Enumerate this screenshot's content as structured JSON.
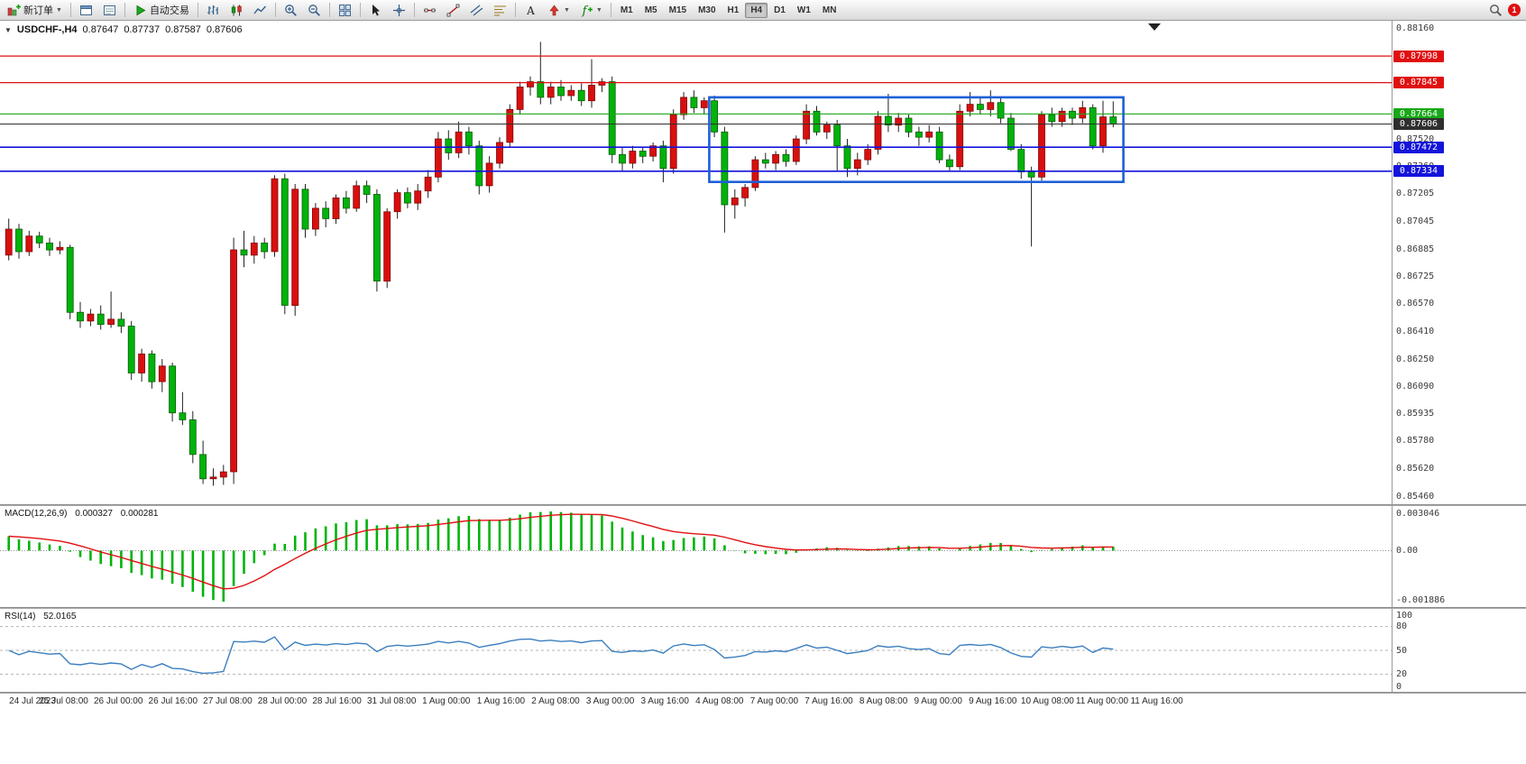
{
  "toolbar": {
    "new_order_label": "新订单",
    "autotrading_label": "自动交易",
    "timeframes": [
      "M1",
      "M5",
      "M15",
      "M30",
      "H1",
      "H4",
      "D1",
      "W1",
      "MN"
    ],
    "active_timeframe": "H4",
    "notification_count": "1"
  },
  "chart_header": {
    "symbol_period": "USDCHF-,H4",
    "open": "0.87647",
    "high": "0.87737",
    "low": "0.87587",
    "close": "0.87606"
  },
  "price_scale": {
    "plain_ticks": [
      "0.88160",
      "0.87520",
      "0.87360",
      "0.87205",
      "0.87045",
      "0.86885",
      "0.86725",
      "0.86570",
      "0.86410",
      "0.86250",
      "0.86090",
      "0.85935",
      "0.85780",
      "0.85620",
      "0.85460"
    ]
  },
  "macd": {
    "label": "MACD(12,26,9)",
    "main_value": "0.000327",
    "signal_value": "0.000281",
    "scale_max": "0.003046",
    "scale_zero": "0.00",
    "scale_min": "-0.001886",
    "histogram_color": "#00b30b",
    "signal_color": "#e01010"
  },
  "rsi": {
    "label": "RSI(14)",
    "value": "52.0165",
    "scale_ticks": [
      "100",
      "80",
      "50",
      "20",
      "0"
    ],
    "level_lines": [
      80,
      50,
      20
    ],
    "line_color": "#3c7fbf"
  },
  "chart_data": {
    "type": "candlestick",
    "symbol": "USDCHF-",
    "period": "H4",
    "y_range": {
      "max": 0.8816,
      "min": 0.8546
    },
    "bull_color": "#d90f0f",
    "bear_color": "#00b30b",
    "wick_color": "#222222",
    "levels": [
      {
        "price": 0.87998,
        "label": "0.87998",
        "color": "#e01010"
      },
      {
        "price": 0.87845,
        "label": "0.87845",
        "color": "#e01010"
      },
      {
        "price": 0.87664,
        "label": "0.87664",
        "color": "#18a818"
      },
      {
        "price": 0.87606,
        "label": "0.87606",
        "color": "#2f2f2f",
        "is_bid": true
      },
      {
        "price": 0.87472,
        "label": "0.87472",
        "color": "#1414dd"
      },
      {
        "price": 0.87334,
        "label": "0.87334",
        "color": "#1414dd"
      }
    ],
    "rectangle": {
      "start_index": 69,
      "end_index": 109.5,
      "top": 0.8776,
      "bottom": 0.87272,
      "color": "#1e5fd8"
    },
    "x_labels": [
      "24 Jul 2023",
      "25 Jul 08:00",
      "26 Jul 00:00",
      "26 Jul 16:00",
      "27 Jul 08:00",
      "28 Jul 00:00",
      "28 Jul 16:00",
      "31 Jul 08:00",
      "1 Aug 00:00",
      "1 Aug 16:00",
      "2 Aug 08:00",
      "3 Aug 00:00",
      "3 Aug 16:00",
      "4 Aug 08:00",
      "7 Aug 00:00",
      "7 Aug 16:00",
      "8 Aug 08:00",
      "9 Aug 00:00",
      "9 Aug 16:00",
      "10 Aug 08:00",
      "11 Aug 00:00",
      "11 Aug 16:00"
    ],
    "ohlc": [
      [
        0.8685,
        0.8706,
        0.8682,
        0.87
      ],
      [
        0.87,
        0.8703,
        0.8683,
        0.8687
      ],
      [
        0.8687,
        0.8699,
        0.86845,
        0.8696
      ],
      [
        0.8696,
        0.86985,
        0.8689,
        0.8692
      ],
      [
        0.8692,
        0.8695,
        0.86845,
        0.8688
      ],
      [
        0.8688,
        0.8693,
        0.86855,
        0.86895
      ],
      [
        0.86895,
        0.8691,
        0.8648,
        0.8652
      ],
      [
        0.8652,
        0.8658,
        0.8643,
        0.8647
      ],
      [
        0.8647,
        0.8654,
        0.8644,
        0.8651
      ],
      [
        0.8651,
        0.8656,
        0.8642,
        0.8645
      ],
      [
        0.8645,
        0.8664,
        0.8643,
        0.8648
      ],
      [
        0.8648,
        0.8652,
        0.864,
        0.8644
      ],
      [
        0.8644,
        0.8647,
        0.8613,
        0.8617
      ],
      [
        0.8617,
        0.8631,
        0.8612,
        0.8628
      ],
      [
        0.8628,
        0.863,
        0.8608,
        0.8612
      ],
      [
        0.8612,
        0.8625,
        0.8606,
        0.8621
      ],
      [
        0.8621,
        0.8623,
        0.8589,
        0.8594
      ],
      [
        0.8594,
        0.8606,
        0.8587,
        0.859
      ],
      [
        0.859,
        0.8595,
        0.8565,
        0.857
      ],
      [
        0.857,
        0.8578,
        0.8553,
        0.8556
      ],
      [
        0.8556,
        0.8562,
        0.8552,
        0.8557
      ],
      [
        0.8557,
        0.8564,
        0.85525,
        0.856
      ],
      [
        0.856,
        0.8695,
        0.8553,
        0.8688
      ],
      [
        0.8688,
        0.8699,
        0.8678,
        0.8685
      ],
      [
        0.8685,
        0.8696,
        0.868,
        0.8692
      ],
      [
        0.8692,
        0.8695,
        0.8683,
        0.8687
      ],
      [
        0.8687,
        0.8731,
        0.8684,
        0.8729
      ],
      [
        0.8729,
        0.8732,
        0.8651,
        0.8656
      ],
      [
        0.8656,
        0.8726,
        0.865,
        0.8723
      ],
      [
        0.8723,
        0.8726,
        0.8695,
        0.87
      ],
      [
        0.87,
        0.8715,
        0.8696,
        0.8712
      ],
      [
        0.8712,
        0.8716,
        0.8701,
        0.8706
      ],
      [
        0.8706,
        0.872,
        0.8703,
        0.8718
      ],
      [
        0.8718,
        0.8722,
        0.8709,
        0.8712
      ],
      [
        0.8712,
        0.8728,
        0.871,
        0.8725
      ],
      [
        0.8725,
        0.8728,
        0.8715,
        0.872
      ],
      [
        0.872,
        0.8723,
        0.8664,
        0.867
      ],
      [
        0.867,
        0.8712,
        0.8666,
        0.871
      ],
      [
        0.871,
        0.8723,
        0.8706,
        0.8721
      ],
      [
        0.8721,
        0.8724,
        0.8712,
        0.8715
      ],
      [
        0.8715,
        0.8726,
        0.8711,
        0.8722
      ],
      [
        0.8722,
        0.8734,
        0.8718,
        0.873
      ],
      [
        0.873,
        0.8756,
        0.8727,
        0.8752
      ],
      [
        0.8752,
        0.8757,
        0.874,
        0.8744
      ],
      [
        0.8744,
        0.8762,
        0.8741,
        0.8756
      ],
      [
        0.8756,
        0.8759,
        0.8743,
        0.8748
      ],
      [
        0.8748,
        0.8751,
        0.872,
        0.8725
      ],
      [
        0.8725,
        0.8742,
        0.8721,
        0.8738
      ],
      [
        0.8738,
        0.8753,
        0.8735,
        0.875
      ],
      [
        0.875,
        0.8772,
        0.8747,
        0.8769
      ],
      [
        0.8769,
        0.8785,
        0.8766,
        0.8782
      ],
      [
        0.8782,
        0.8788,
        0.8777,
        0.8785
      ],
      [
        0.8785,
        0.8808,
        0.8772,
        0.8776
      ],
      [
        0.8776,
        0.8785,
        0.8772,
        0.8782
      ],
      [
        0.8782,
        0.8786,
        0.8774,
        0.8777
      ],
      [
        0.8777,
        0.8783,
        0.8774,
        0.878
      ],
      [
        0.878,
        0.8784,
        0.8771,
        0.8774
      ],
      [
        0.8774,
        0.8798,
        0.877,
        0.8783
      ],
      [
        0.8783,
        0.8787,
        0.8779,
        0.8785
      ],
      [
        0.8785,
        0.8788,
        0.8738,
        0.8743
      ],
      [
        0.8743,
        0.8747,
        0.8733,
        0.8738
      ],
      [
        0.8738,
        0.8748,
        0.8735,
        0.8745
      ],
      [
        0.8745,
        0.8747,
        0.8738,
        0.8742
      ],
      [
        0.8742,
        0.875,
        0.8739,
        0.8748
      ],
      [
        0.8748,
        0.8751,
        0.8727,
        0.8735
      ],
      [
        0.8735,
        0.8769,
        0.8732,
        0.8766
      ],
      [
        0.8766,
        0.8779,
        0.8763,
        0.8776
      ],
      [
        0.8776,
        0.878,
        0.8767,
        0.877
      ],
      [
        0.877,
        0.8776,
        0.8766,
        0.8774
      ],
      [
        0.8774,
        0.8777,
        0.8753,
        0.8756
      ],
      [
        0.8756,
        0.8759,
        0.8698,
        0.8714
      ],
      [
        0.8714,
        0.8723,
        0.8706,
        0.8718
      ],
      [
        0.8718,
        0.8726,
        0.8713,
        0.8724
      ],
      [
        0.8724,
        0.8742,
        0.8722,
        0.874
      ],
      [
        0.874,
        0.8744,
        0.8735,
        0.8738
      ],
      [
        0.8738,
        0.8745,
        0.8734,
        0.8743
      ],
      [
        0.8743,
        0.8746,
        0.8736,
        0.8739
      ],
      [
        0.8739,
        0.8754,
        0.8737,
        0.8752
      ],
      [
        0.8752,
        0.8772,
        0.8749,
        0.8768
      ],
      [
        0.8768,
        0.8771,
        0.8754,
        0.8756
      ],
      [
        0.8756,
        0.8762,
        0.8752,
        0.876
      ],
      [
        0.876,
        0.8763,
        0.8733,
        0.8748
      ],
      [
        0.8748,
        0.8752,
        0.873,
        0.8735
      ],
      [
        0.8735,
        0.8744,
        0.8731,
        0.874
      ],
      [
        0.874,
        0.8749,
        0.8737,
        0.8746
      ],
      [
        0.8746,
        0.8768,
        0.8743,
        0.8765
      ],
      [
        0.8765,
        0.8778,
        0.8756,
        0.876
      ],
      [
        0.876,
        0.8767,
        0.8756,
        0.8764
      ],
      [
        0.8764,
        0.8766,
        0.8753,
        0.8756
      ],
      [
        0.8756,
        0.8759,
        0.8748,
        0.8753
      ],
      [
        0.8753,
        0.876,
        0.875,
        0.8756
      ],
      [
        0.8756,
        0.8759,
        0.8738,
        0.874
      ],
      [
        0.874,
        0.8743,
        0.8733,
        0.8736
      ],
      [
        0.8736,
        0.8772,
        0.8734,
        0.8768
      ],
      [
        0.8768,
        0.8779,
        0.8765,
        0.8772
      ],
      [
        0.8772,
        0.8776,
        0.8766,
        0.8769
      ],
      [
        0.8769,
        0.878,
        0.8765,
        0.8773
      ],
      [
        0.8773,
        0.8776,
        0.8761,
        0.8764
      ],
      [
        0.8764,
        0.8767,
        0.8745,
        0.8746
      ],
      [
        0.8746,
        0.8749,
        0.8729,
        0.8733
      ],
      [
        0.8733,
        0.8736,
        0.869,
        0.873
      ],
      [
        0.873,
        0.8768,
        0.8728,
        0.8766
      ],
      [
        0.8766,
        0.877,
        0.8759,
        0.8762
      ],
      [
        0.8762,
        0.877,
        0.8759,
        0.8768
      ],
      [
        0.8768,
        0.877,
        0.876,
        0.8764
      ],
      [
        0.8764,
        0.8774,
        0.8761,
        0.877
      ],
      [
        0.877,
        0.8772,
        0.8746,
        0.8748
      ],
      [
        0.8748,
        0.8774,
        0.8744,
        0.87647
      ],
      [
        0.87647,
        0.87737,
        0.87587,
        0.87606
      ]
    ]
  }
}
